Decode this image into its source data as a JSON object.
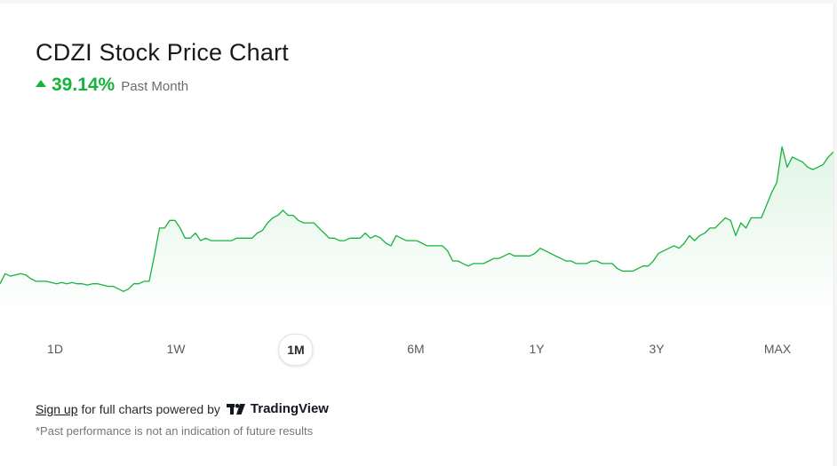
{
  "header": {
    "title": "CDZI Stock Price Chart",
    "change_value": "39.14%",
    "change_period": "Past Month",
    "change_direction": "up",
    "accent_color": "#16b33e"
  },
  "chart_data": {
    "type": "area",
    "title": "",
    "xlabel": "",
    "ylabel": "",
    "grid": false,
    "legend": "none",
    "line_color": "#16b33e",
    "fill_color": "#e8f7ea",
    "series": [
      {
        "values": [
          57,
          61,
          60,
          60.5,
          61,
          60.5,
          59,
          58,
          58,
          58,
          57.5,
          57,
          57.5,
          57,
          57.5,
          57,
          57,
          56.5,
          57,
          57,
          56.5,
          56,
          56,
          55,
          54,
          55,
          57,
          57,
          58,
          58,
          68,
          79,
          79,
          82,
          82,
          79,
          75,
          75,
          77,
          74,
          75,
          74,
          74,
          74,
          74,
          74,
          75,
          75,
          75,
          75,
          77,
          78,
          81,
          83,
          84,
          86,
          84,
          84,
          82,
          81,
          81,
          81,
          79,
          77,
          75,
          75,
          74,
          74,
          75,
          75,
          75,
          77,
          75,
          76,
          75,
          73,
          72,
          76,
          75,
          74,
          74,
          74,
          73,
          72,
          72,
          72,
          72,
          70,
          66,
          66,
          65,
          64,
          65,
          65,
          65,
          66,
          67,
          67,
          68,
          69,
          68,
          68,
          68,
          68,
          69,
          71,
          70,
          69,
          68,
          67,
          66,
          66,
          65,
          65,
          65,
          66,
          66,
          65,
          65,
          65,
          63,
          62,
          62,
          62,
          63,
          64,
          64,
          66,
          69,
          70,
          71,
          72,
          71,
          73,
          76,
          74,
          76,
          77,
          79,
          79,
          81,
          83,
          82,
          76,
          81,
          79,
          83,
          83,
          83,
          88,
          93,
          97,
          111,
          103,
          107,
          106,
          105,
          103,
          102,
          103,
          104,
          107,
          109
        ]
      }
    ],
    "ylim": [
      45,
      115
    ]
  },
  "ranges": {
    "items": [
      "1D",
      "1W",
      "1M",
      "6M",
      "1Y",
      "3Y",
      "MAX"
    ],
    "active": "1M"
  },
  "footer": {
    "signup_link": "Sign up",
    "powered_text": "for full charts powered by",
    "brand": "TradingView",
    "disclaimer": "*Past performance is not an indication of future results"
  }
}
